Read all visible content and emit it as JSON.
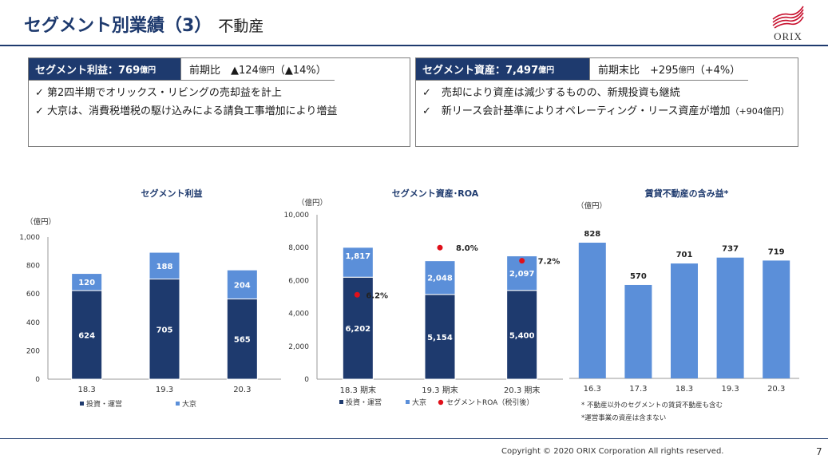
{
  "header": {
    "title": "セグメント別業績（3）",
    "subtitle": "不動産"
  },
  "logo": {
    "text": "ORIX",
    "color": "#c8102e"
  },
  "colors": {
    "navy": "#1e3a6e",
    "light_blue": "#5b8fd9",
    "roa_red": "#e0101a"
  },
  "left_panel": {
    "label": "セグメント利益：769",
    "label_unit": "億円",
    "compare": "前期比　▲124",
    "compare_unit": "億円",
    "compare_tail": "（▲14%）",
    "bullets": [
      "✓ 第2四半期でオリックス・リビングの売却益を計上",
      "✓ 大京は、消費税増税の駆け込みによる請負工事増加により増益"
    ]
  },
  "right_panel": {
    "label": "セグメント資産：7,497",
    "label_unit": "億円",
    "compare": "前期末比　+295",
    "compare_unit": "億円",
    "compare_tail": "（+4%）",
    "bullets": [
      "✓　売却により資産は減少するものの、新規投資も継続",
      "✓　新リース会計基準によりオペレーティング・リース資産が増加",
      "（+904億円）"
    ]
  },
  "chart_data": [
    {
      "type": "bar",
      "title": "セグメント利益",
      "unit_label": "（億円）",
      "categories": [
        "18.3",
        "19.3",
        "20.3"
      ],
      "series": [
        {
          "name": "投資・運営",
          "values": [
            624,
            705,
            565
          ]
        },
        {
          "name": "大京",
          "values": [
            120,
            188,
            204
          ]
        }
      ],
      "ylim": [
        0,
        1000
      ],
      "yticks": [
        "0",
        "200",
        "400",
        "600",
        "800",
        "1,000"
      ],
      "stacked": true
    },
    {
      "type": "bar",
      "title": "セグメント資産･ROA",
      "unit_label": "（億円）",
      "categories": [
        "18.3 期末",
        "19.3 期末",
        "20.3 期末"
      ],
      "series": [
        {
          "name": "投資・運営",
          "values": [
            6202,
            5154,
            5400
          ],
          "labels": [
            "6,202",
            "5,154",
            "5,400"
          ]
        },
        {
          "name": "大京",
          "values": [
            1817,
            2048,
            2097
          ],
          "labels": [
            "1,817",
            "2,048",
            "2,097"
          ]
        },
        {
          "name": "セグメントROA（税引後）",
          "values": [
            6.2,
            8.0,
            7.2
          ],
          "labels": [
            "6.2%",
            "8.0%",
            "7.2%"
          ]
        }
      ],
      "ylim": [
        0,
        10000
      ],
      "yticks": [
        "0",
        "2,000",
        "4,000",
        "6,000",
        "8,000",
        "10,000"
      ],
      "stacked": true
    },
    {
      "type": "bar",
      "title": "賃貸不動産の含み益*",
      "unit_label": "（億円）",
      "categories": [
        "16.3",
        "17.3",
        "18.3",
        "19.3",
        "20.3"
      ],
      "series": [
        {
          "name": "",
          "values": [
            828,
            570,
            701,
            737,
            719
          ]
        }
      ],
      "notes": [
        "* 不動産以外のセグメントの賃貸不動産も含む",
        "*運営事業の資産は含まない"
      ]
    }
  ],
  "footer": {
    "copyright": "Copyright © 2020 ORIX Corporation  All rights reserved.",
    "page": "7"
  }
}
